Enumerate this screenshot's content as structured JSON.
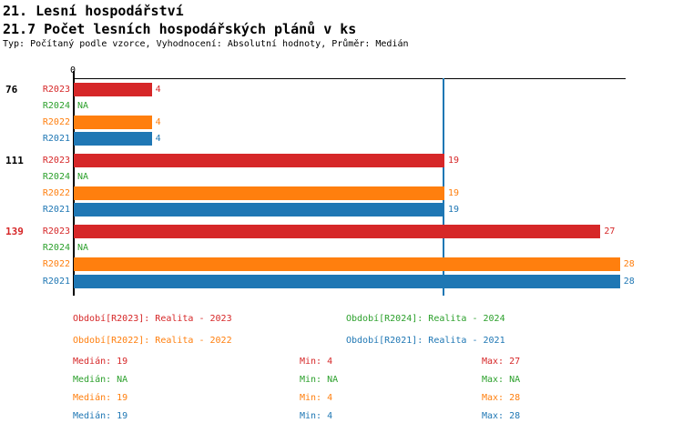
{
  "header": {
    "title": "21. Lesní hospodářství",
    "subtitle": "21.7 Počet lesních hospodářských plánů v ks",
    "meta": "Typ: Počítaný podle vzorce, Vyhodnocení: Absolutní hodnoty, Průměr: Medián"
  },
  "colors": {
    "r2023": "#d62728",
    "r2024": "#2ca02c",
    "r2022": "#ff7f0e",
    "r2021": "#1f77b4",
    "axis": "#000000",
    "median_line": "#1f77b4"
  },
  "chart_data": {
    "type": "bar",
    "orientation": "horizontal",
    "title": "21.7 Počet lesních hospodářských plánů v ks",
    "xlabel": "",
    "ylabel": "",
    "x_axis": {
      "zero_label": "0",
      "min": 0,
      "max_drawn": 28,
      "median_line_value": 19,
      "grid": false
    },
    "series_order": [
      "R2023",
      "R2024",
      "R2022",
      "R2021"
    ],
    "groups": [
      {
        "label": "76",
        "label_color": "#000000",
        "rows": [
          {
            "series": "R2023",
            "color": "#d62728",
            "value": 4,
            "display": "4"
          },
          {
            "series": "R2024",
            "color": "#2ca02c",
            "value": null,
            "display": "NA"
          },
          {
            "series": "R2022",
            "color": "#ff7f0e",
            "value": 4,
            "display": "4"
          },
          {
            "series": "R2021",
            "color": "#1f77b4",
            "value": 4,
            "display": "4"
          }
        ]
      },
      {
        "label": "111",
        "label_color": "#000000",
        "rows": [
          {
            "series": "R2023",
            "color": "#d62728",
            "value": 19,
            "display": "19"
          },
          {
            "series": "R2024",
            "color": "#2ca02c",
            "value": null,
            "display": "NA"
          },
          {
            "series": "R2022",
            "color": "#ff7f0e",
            "value": 19,
            "display": "19"
          },
          {
            "series": "R2021",
            "color": "#1f77b4",
            "value": 19,
            "display": "19"
          }
        ]
      },
      {
        "label": "139",
        "label_color": "#d62728",
        "rows": [
          {
            "series": "R2023",
            "color": "#d62728",
            "value": 27,
            "display": "27"
          },
          {
            "series": "R2024",
            "color": "#2ca02c",
            "value": null,
            "display": "NA"
          },
          {
            "series": "R2022",
            "color": "#ff7f0e",
            "value": 28,
            "display": "28"
          },
          {
            "series": "R2021",
            "color": "#1f77b4",
            "value": 28,
            "display": "28"
          }
        ]
      }
    ]
  },
  "legend": {
    "items": [
      {
        "label": "Období[R2023]: Realita - 2023",
        "color": "#d62728"
      },
      {
        "label": "Období[R2024]: Realita - 2024",
        "color": "#2ca02c"
      },
      {
        "label": "Období[R2022]: Realita - 2022",
        "color": "#ff7f0e"
      },
      {
        "label": "Období[R2021]: Realita - 2021",
        "color": "#1f77b4"
      }
    ]
  },
  "stats": {
    "rows": [
      {
        "series": "R2023",
        "color": "#d62728",
        "median": "Medián: 19",
        "min": "Min: 4",
        "max": "Max: 27"
      },
      {
        "series": "R2024",
        "color": "#2ca02c",
        "median": "Medián: NA",
        "min": "Min: NA",
        "max": "Max: NA"
      },
      {
        "series": "R2022",
        "color": "#ff7f0e",
        "median": "Medián: 19",
        "min": "Min: 4",
        "max": "Max: 28"
      },
      {
        "series": "R2021",
        "color": "#1f77b4",
        "median": "Medián: 19",
        "min": "Min: 4",
        "max": "Max: 28"
      }
    ]
  }
}
